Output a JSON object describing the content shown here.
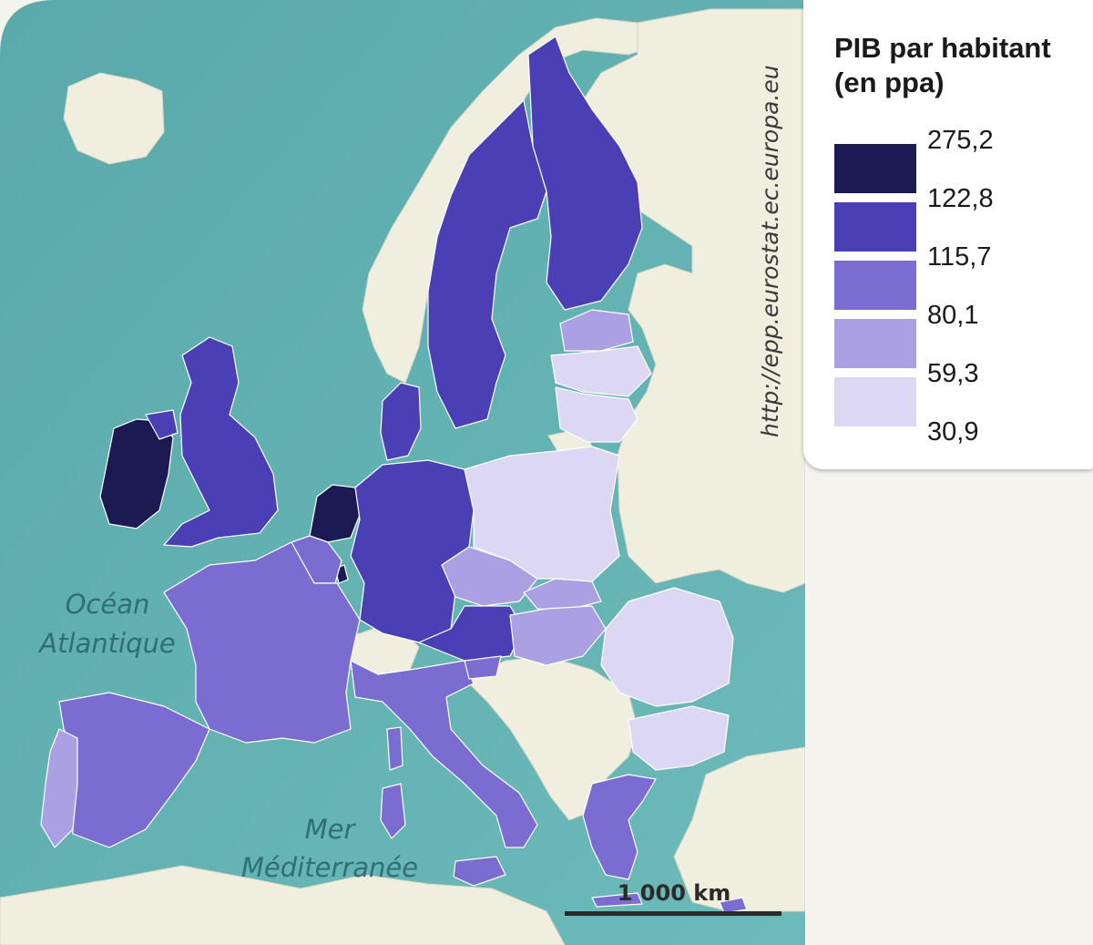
{
  "legend": {
    "title_line1": "PIB par habitant",
    "title_line2": "(en ppa)",
    "thresholds": [
      "275,2",
      "122,8",
      "115,7",
      "80,1",
      "59,3",
      "30,9"
    ],
    "classes": [
      {
        "color": "#1c1a52"
      },
      {
        "color": "#4a3fb4"
      },
      {
        "color": "#7b6cd2"
      },
      {
        "color": "#aba0e2"
      },
      {
        "color": "#dcd8f3"
      }
    ]
  },
  "colors": {
    "sea": "#5fb0b2",
    "non_eu_land": "#efeedf",
    "border": "#ffffff"
  },
  "map": {
    "source": "http://epp.eurostat.ec.europa.eu",
    "labels": {
      "ocean_line1": "Océan",
      "ocean_line2": "Atlantique",
      "sea_line1": "Mer",
      "sea_line2": "Méditerranée"
    },
    "scale_label": "1 000 km"
  }
}
